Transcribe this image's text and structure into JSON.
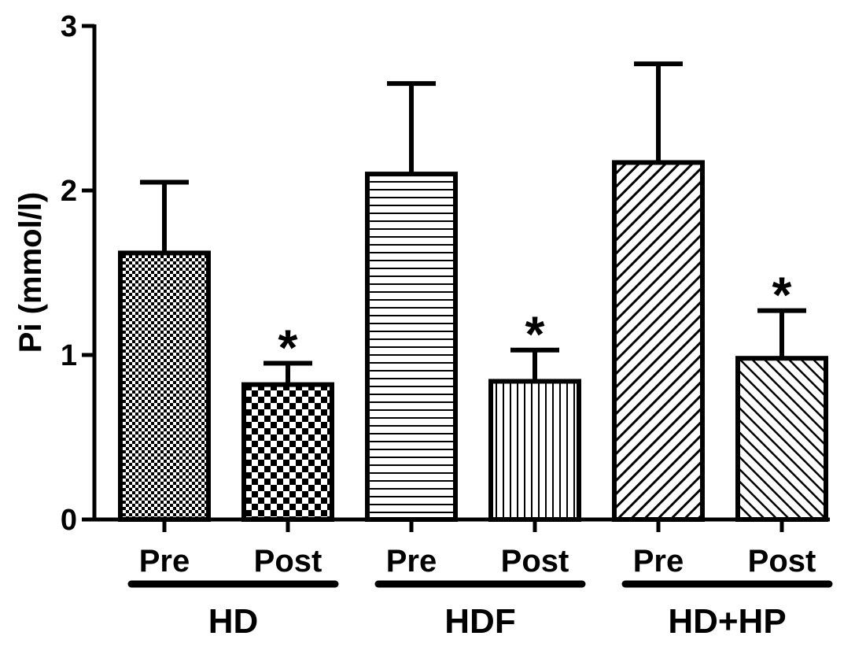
{
  "chart_data": {
    "type": "bar",
    "title": "",
    "xlabel": "",
    "ylabel": "Pi (mmol/l)",
    "ylim": [
      0,
      3
    ],
    "yticks": [
      {
        "value": 0,
        "label": "0"
      },
      {
        "value": 1,
        "label": "1"
      },
      {
        "value": 2,
        "label": "2"
      },
      {
        "value": 3,
        "label": "3"
      }
    ],
    "groups": [
      {
        "label": "HD",
        "bars": [
          {
            "category": "Pre",
            "value": 1.62,
            "error": 0.43,
            "significant": false,
            "pattern": "fine-checker"
          },
          {
            "category": "Post",
            "value": 0.82,
            "error": 0.13,
            "significant": true,
            "pattern": "coarse-checker"
          }
        ]
      },
      {
        "label": "HDF",
        "bars": [
          {
            "category": "Pre",
            "value": 2.1,
            "error": 0.55,
            "significant": false,
            "pattern": "horizontal-lines"
          },
          {
            "category": "Post",
            "value": 0.84,
            "error": 0.19,
            "significant": true,
            "pattern": "vertical-lines"
          }
        ]
      },
      {
        "label": "HD+HP",
        "bars": [
          {
            "category": "Pre",
            "value": 2.17,
            "error": 0.6,
            "significant": false,
            "pattern": "diagonal-forward"
          },
          {
            "category": "Post",
            "value": 0.98,
            "error": 0.29,
            "significant": true,
            "pattern": "diagonal-backward"
          }
        ]
      }
    ],
    "significance_marker": "*",
    "grid": false,
    "legend": "none",
    "colors": {
      "stroke": "#000000",
      "fill": "#ffffff"
    }
  }
}
